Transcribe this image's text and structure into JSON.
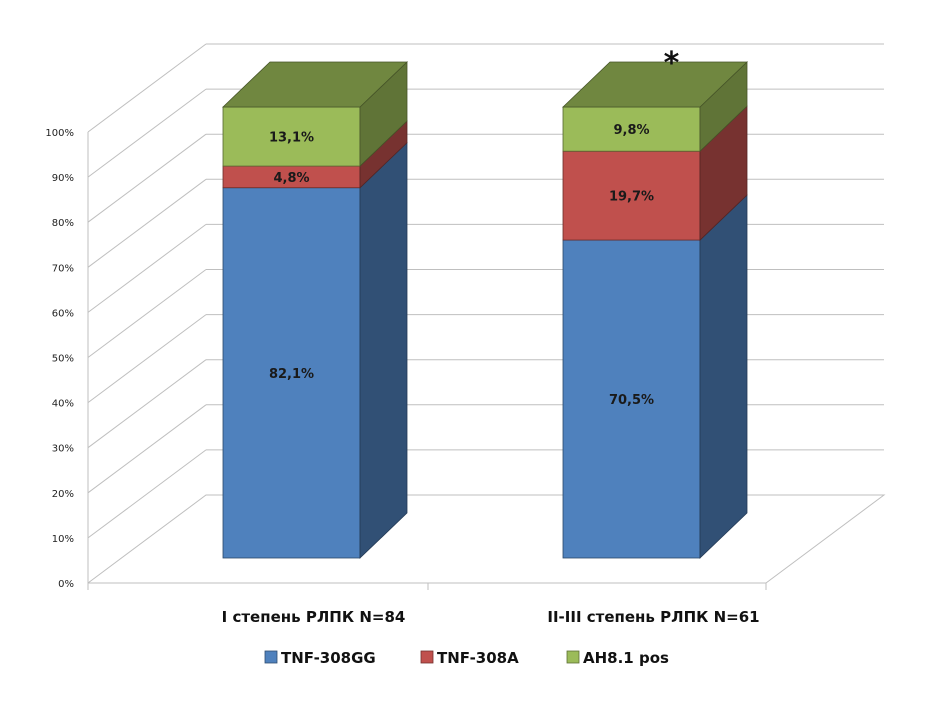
{
  "chart_data": {
    "type": "bar",
    "stacked": true,
    "three_d": true,
    "categories": [
      "I степень РЛПК N=84",
      "II-III степень РЛПК N=61"
    ],
    "series": [
      {
        "name": "TNF-308GG",
        "values": [
          82.1,
          70.5
        ],
        "labels": [
          "82,1%",
          "70,5%"
        ],
        "color": "#4F81BD"
      },
      {
        "name": "TNF-308A",
        "values": [
          4.8,
          19.7
        ],
        "labels": [
          "4,8%",
          "19,7%"
        ],
        "color": "#C0504D"
      },
      {
        "name": "AH8.1 pos",
        "values": [
          13.1,
          9.8
        ],
        "labels": [
          "13,1%",
          "9,8%"
        ],
        "color": "#9BBB59"
      }
    ],
    "ylim": [
      0,
      100
    ],
    "yticks": [
      "0%",
      "10%",
      "20%",
      "30%",
      "40%",
      "50%",
      "60%",
      "70%",
      "80%",
      "90%",
      "100%"
    ],
    "grid": true,
    "legend_position": "bottom",
    "annotations": [
      {
        "text": "*",
        "category_index": 1
      }
    ]
  }
}
